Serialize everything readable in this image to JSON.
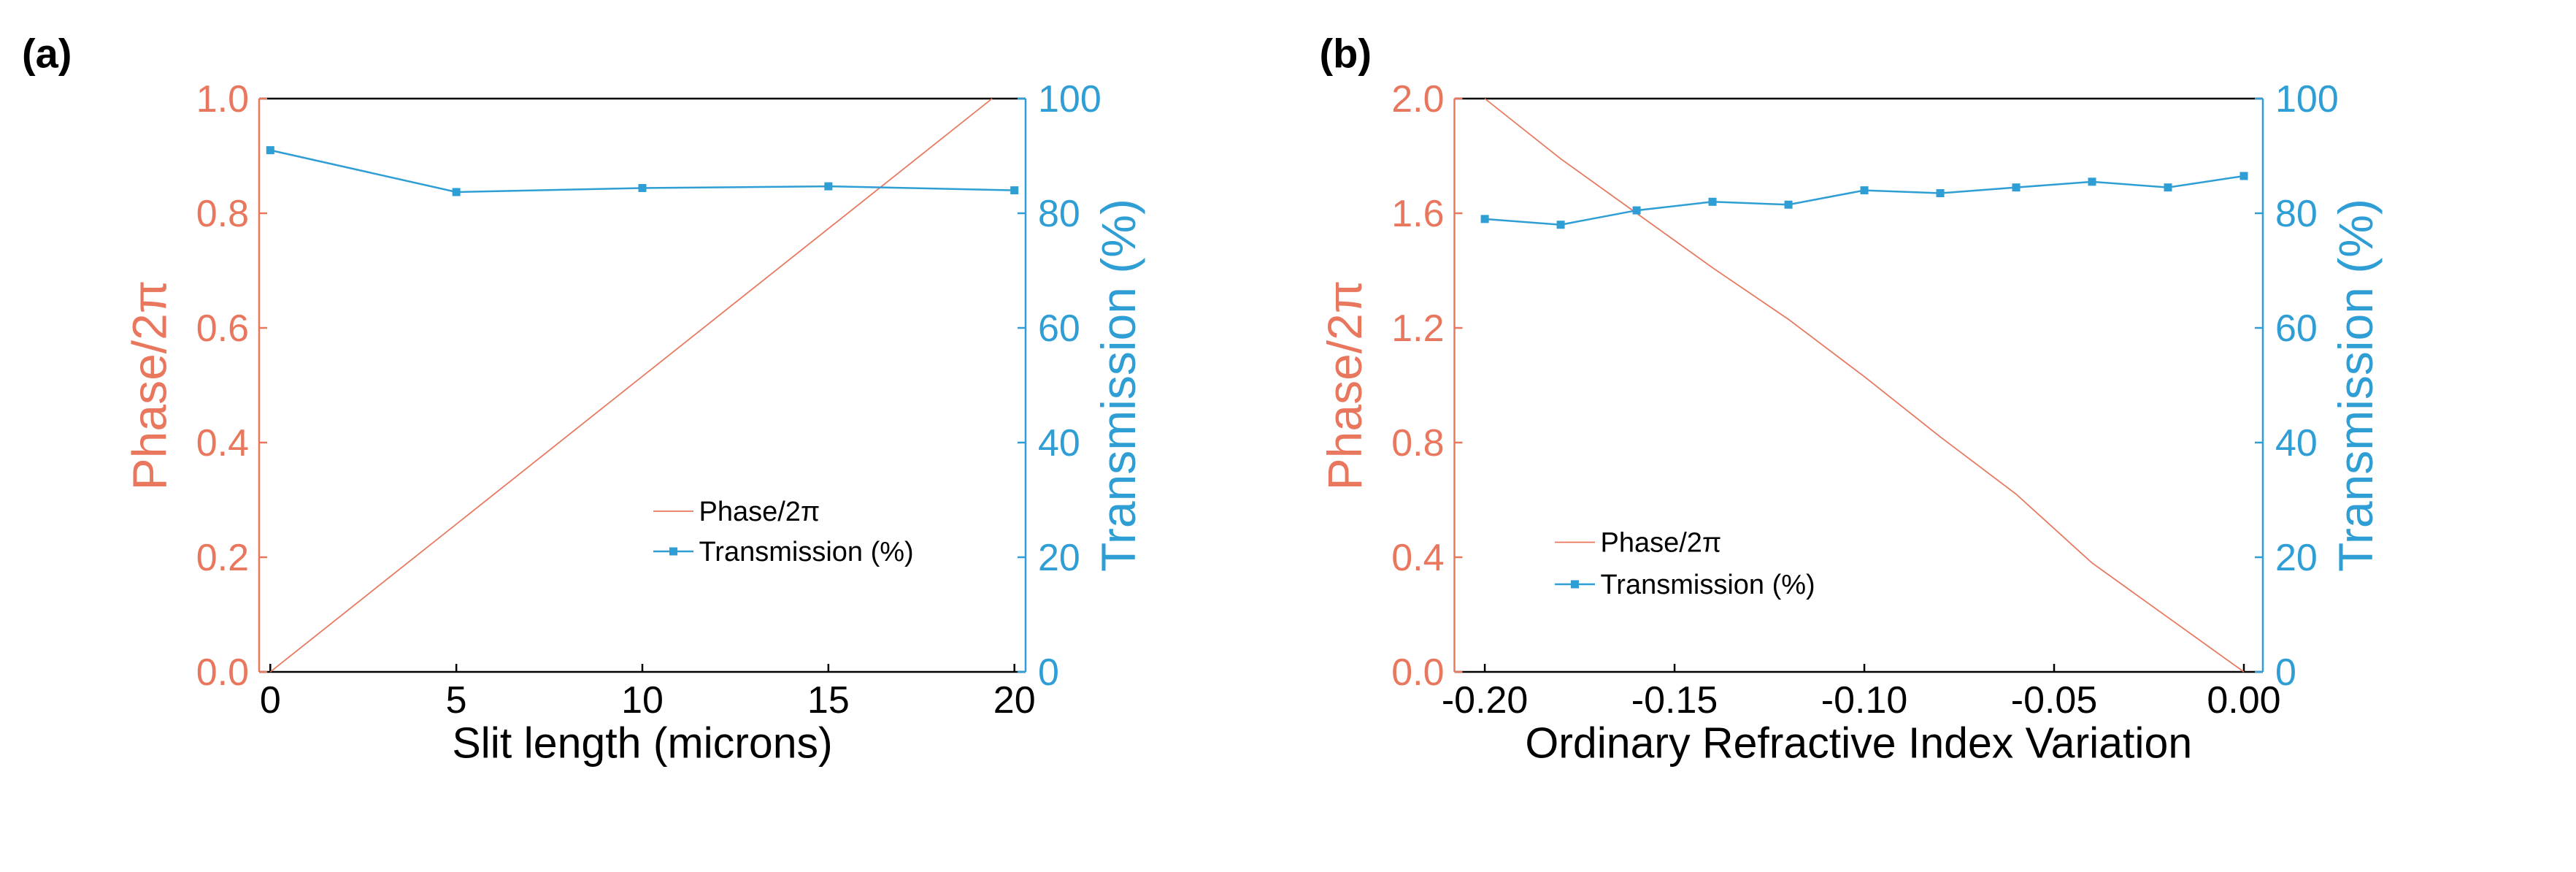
{
  "colors": {
    "phase": "#E8775E",
    "transmission": "#2E9ED4",
    "axis": "#000000"
  },
  "chart_data": [
    {
      "panel_label": "(a)",
      "type": "line",
      "xlabel": "Slit length (microns)",
      "xlim": [
        -0.3,
        20.3
      ],
      "xticks": [
        0,
        5,
        10,
        15,
        20
      ],
      "xtick_labels": [
        "0",
        "5",
        "10",
        "15",
        "20"
      ],
      "y_left": {
        "label": "Phase/2π",
        "lim": [
          0,
          1.0
        ],
        "ticks": [
          0,
          0.2,
          0.4,
          0.6,
          0.8,
          1.0
        ],
        "tick_labels": [
          "0.0",
          "0.2",
          "0.4",
          "0.6",
          "0.8",
          "1.0"
        ]
      },
      "y_right": {
        "label": "Transmission (%)",
        "lim": [
          0,
          100
        ],
        "ticks": [
          0,
          20,
          40,
          60,
          80,
          100
        ],
        "tick_labels": [
          "0",
          "20",
          "40",
          "60",
          "80",
          "100"
        ]
      },
      "series": [
        {
          "name": "Phase/2π",
          "axis": "left",
          "marker": false,
          "x": [
            0,
            19.4
          ],
          "values": [
            0,
            1.0
          ]
        },
        {
          "name": "Transmission (%)",
          "axis": "right",
          "marker": true,
          "x": [
            0,
            5,
            10,
            15,
            20
          ],
          "values": [
            91,
            83.7,
            84.4,
            84.7,
            84.0
          ]
        }
      ],
      "legend": [
        "Phase/2π",
        "Transmission (%)"
      ],
      "legend_position": "lower-right"
    },
    {
      "panel_label": "(b)",
      "type": "line",
      "xlabel": "Ordinary Refractive Index Variation",
      "xlim": [
        -0.208,
        0.005
      ],
      "xticks": [
        -0.2,
        -0.15,
        -0.1,
        -0.05,
        0.0
      ],
      "xtick_labels": [
        "-0.20",
        "-0.15",
        "-0.10",
        "-0.05",
        "0.00"
      ],
      "y_left": {
        "label": "Phase/2π",
        "lim": [
          0,
          2.0
        ],
        "ticks": [
          0,
          0.4,
          0.8,
          1.2,
          1.6,
          2.0
        ],
        "tick_labels": [
          "0.0",
          "0.4",
          "0.8",
          "1.2",
          "1.6",
          "2.0"
        ]
      },
      "y_right": {
        "label": "Transmission (%)",
        "lim": [
          0,
          100
        ],
        "ticks": [
          0,
          20,
          40,
          60,
          80,
          100
        ],
        "tick_labels": [
          "0",
          "20",
          "40",
          "60",
          "80",
          "100"
        ]
      },
      "series": [
        {
          "name": "Phase/2π",
          "axis": "left",
          "marker": false,
          "x": [
            -0.2,
            -0.18,
            -0.16,
            -0.14,
            -0.12,
            -0.1,
            -0.08,
            -0.06,
            -0.04,
            -0.02,
            0.0
          ],
          "values": [
            2.0,
            1.79,
            1.6,
            1.41,
            1.23,
            1.03,
            0.82,
            0.62,
            0.38,
            0.19,
            0.0
          ]
        },
        {
          "name": "Transmission (%)",
          "axis": "right",
          "marker": true,
          "x": [
            -0.2,
            -0.18,
            -0.16,
            -0.14,
            -0.12,
            -0.1,
            -0.08,
            -0.06,
            -0.04,
            -0.02,
            0.0
          ],
          "values": [
            79,
            78,
            80.5,
            82,
            81.5,
            84,
            83.5,
            84.5,
            85.5,
            84.5,
            86.5
          ]
        }
      ],
      "legend": [
        "Phase/2π",
        "Transmission (%)"
      ],
      "legend_position": "lower-left"
    }
  ]
}
